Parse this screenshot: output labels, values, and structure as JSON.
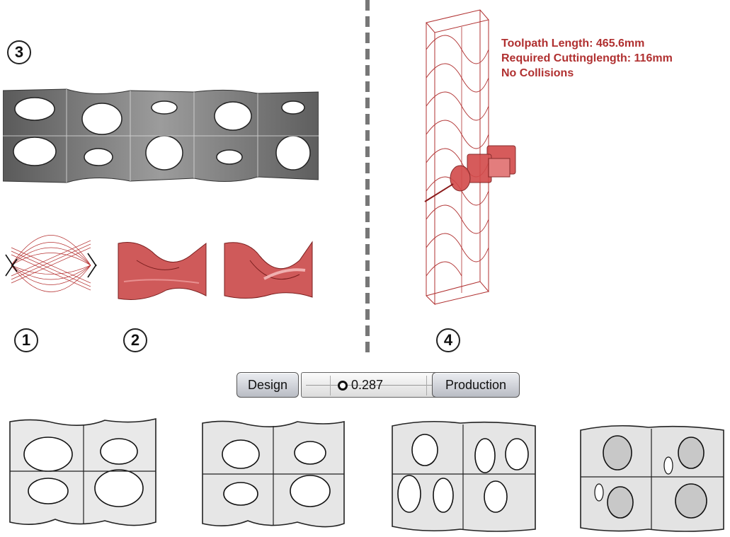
{
  "labels": {
    "n1": "1",
    "n2": "2",
    "n3": "3",
    "n4": "4"
  },
  "info": {
    "toolpath_length": "Toolpath Length: 465.6mm",
    "cutting_length": "Required Cuttinglength: 116mm",
    "collisions": "No Collisions"
  },
  "slider": {
    "left_label": "Design",
    "value": "0.287",
    "right_label": "Production",
    "position": 0.287
  },
  "colors": {
    "accent_red": "#b03030",
    "surface_gray": "#8e8e8e"
  }
}
